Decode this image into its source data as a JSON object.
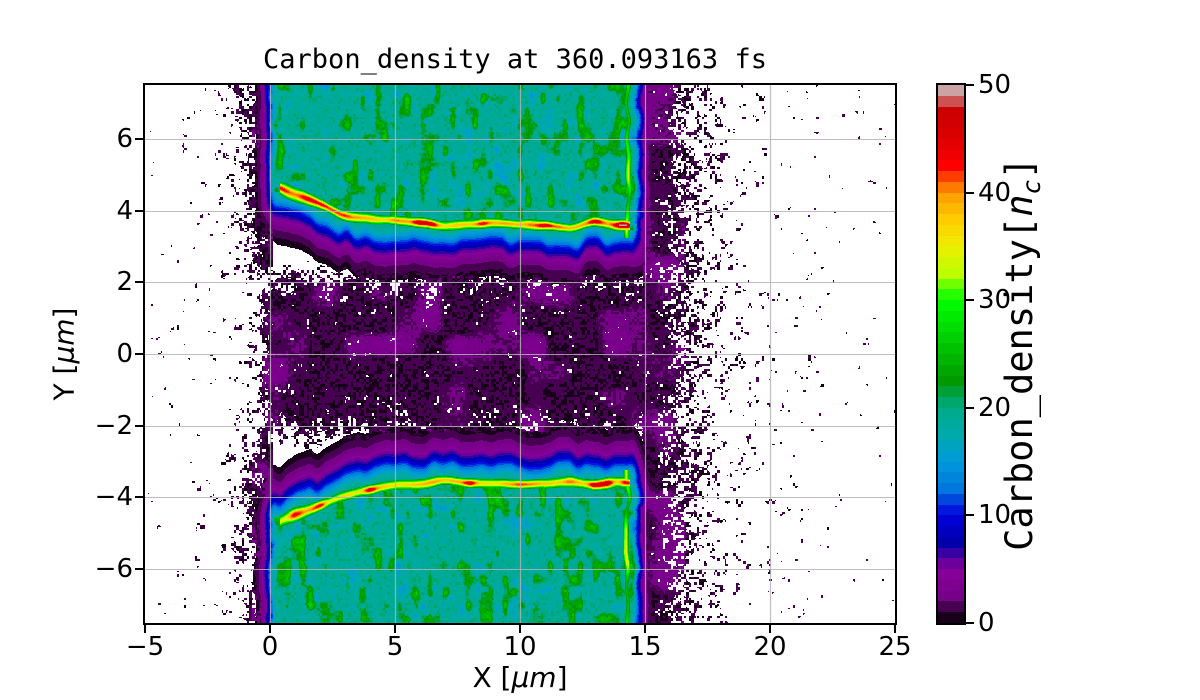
{
  "title": "Carbon_density at 360.093163 fs",
  "axis_labels": {
    "x_pre": "X [",
    "x_unit": "μm",
    "x_post": "]",
    "y_pre": "Y [",
    "y_unit": "μm",
    "y_post": "]"
  },
  "colorbar_label": {
    "pre": "Carbon_density[",
    "var": "n",
    "sub": "c",
    "post": "]"
  },
  "colors": {
    "background": "#ffffff",
    "spine": "#000000",
    "text": "#000000",
    "grid": "#b3b3b3",
    "empty": "#ffffff"
  },
  "chart_data": {
    "type": "heatmap",
    "title": "Carbon_density at 360.093163 fs",
    "time_fs": 360.093163,
    "xlabel": "X [μm]",
    "ylabel": "Y [μm]",
    "xlim": [
      -5,
      25
    ],
    "ylim": [
      -7.5,
      7.5
    ],
    "xticks": [
      -5,
      0,
      5,
      10,
      15,
      20,
      25
    ],
    "yticks": [
      -6,
      -4,
      -2,
      0,
      2,
      4,
      6
    ],
    "grid": true,
    "grid_color": "#b3b3b3",
    "colorbar": {
      "label": "Carbon_density[n_c]",
      "ticks": [
        0,
        10,
        20,
        30,
        40,
        50
      ],
      "vmin": 0,
      "vmax": 50,
      "levels": 50,
      "colormap": "nipy_spectral",
      "stops": [
        [
          0.0,
          "#000000"
        ],
        [
          0.05,
          "#770088"
        ],
        [
          0.1,
          "#880099"
        ],
        [
          0.15,
          "#0000aa"
        ],
        [
          0.2,
          "#0000dd"
        ],
        [
          0.25,
          "#0077dd"
        ],
        [
          0.3,
          "#0099dd"
        ],
        [
          0.35,
          "#00aaaa"
        ],
        [
          0.4,
          "#00aa88"
        ],
        [
          0.45,
          "#009900"
        ],
        [
          0.5,
          "#00bb00"
        ],
        [
          0.55,
          "#00dd00"
        ],
        [
          0.6,
          "#00ff00"
        ],
        [
          0.65,
          "#bbff00"
        ],
        [
          0.7,
          "#eeee00"
        ],
        [
          0.75,
          "#ffcc00"
        ],
        [
          0.8,
          "#ff9900"
        ],
        [
          0.85,
          "#ff0000"
        ],
        [
          0.9,
          "#dd0000"
        ],
        [
          0.95,
          "#cc0000"
        ],
        [
          1.0,
          "#cccccc"
        ]
      ]
    },
    "features": {
      "description": "Two solid carbon slabs (x = 0 to 14.5 um, |y| from ~2.5 to 7.5 um) at ~19 nc plateau density, each with a compressed high-density front ridge (33-49 nc, yellow/red) at |y| ~ 3.6 um that hooks up to |y| ~ 4.6 um near x ~ 0.5 um; a bright green edge layer (~29 nc) along the right slab face at x ~ 14.35 um; low-density blow-off plasma (0.5-3 nc, black/purple speckle) fills the central gap |y| < 2.3 um and forms scattered particle bands beyond both slab faces; empty regions render white.",
      "slab": {
        "x_range": [
          0,
          14.5
        ],
        "plateau_density_nc": 19,
        "green_edge_x": 14.35,
        "green_edge_density_nc": 29
      },
      "ridge": {
        "density_nc": [
          33,
          49
        ],
        "points": [
          [
            0.42,
            4.62
          ],
          [
            0.8,
            4.5
          ],
          [
            1.3,
            4.38
          ],
          [
            2.0,
            4.16
          ],
          [
            2.8,
            3.95
          ],
          [
            3.6,
            3.8
          ],
          [
            4.4,
            3.7
          ],
          [
            5.2,
            3.64
          ],
          [
            6.0,
            3.6
          ],
          [
            7.0,
            3.59
          ],
          [
            8.0,
            3.62
          ],
          [
            9.0,
            3.6
          ],
          [
            10.0,
            3.58
          ],
          [
            11.0,
            3.62
          ],
          [
            12.0,
            3.59
          ],
          [
            13.0,
            3.62
          ],
          [
            13.8,
            3.58
          ],
          [
            14.38,
            3.6
          ]
        ]
      },
      "gap_plasma": {
        "half_width_um": 2.35,
        "density_nc": [
          0.5,
          3
        ]
      },
      "scatter_bands": {
        "left_x": [
          -1.3,
          0.1
        ],
        "right_x": [
          14.9,
          17.5
        ],
        "sparse_extent_x": [
          -5,
          25
        ]
      }
    }
  }
}
